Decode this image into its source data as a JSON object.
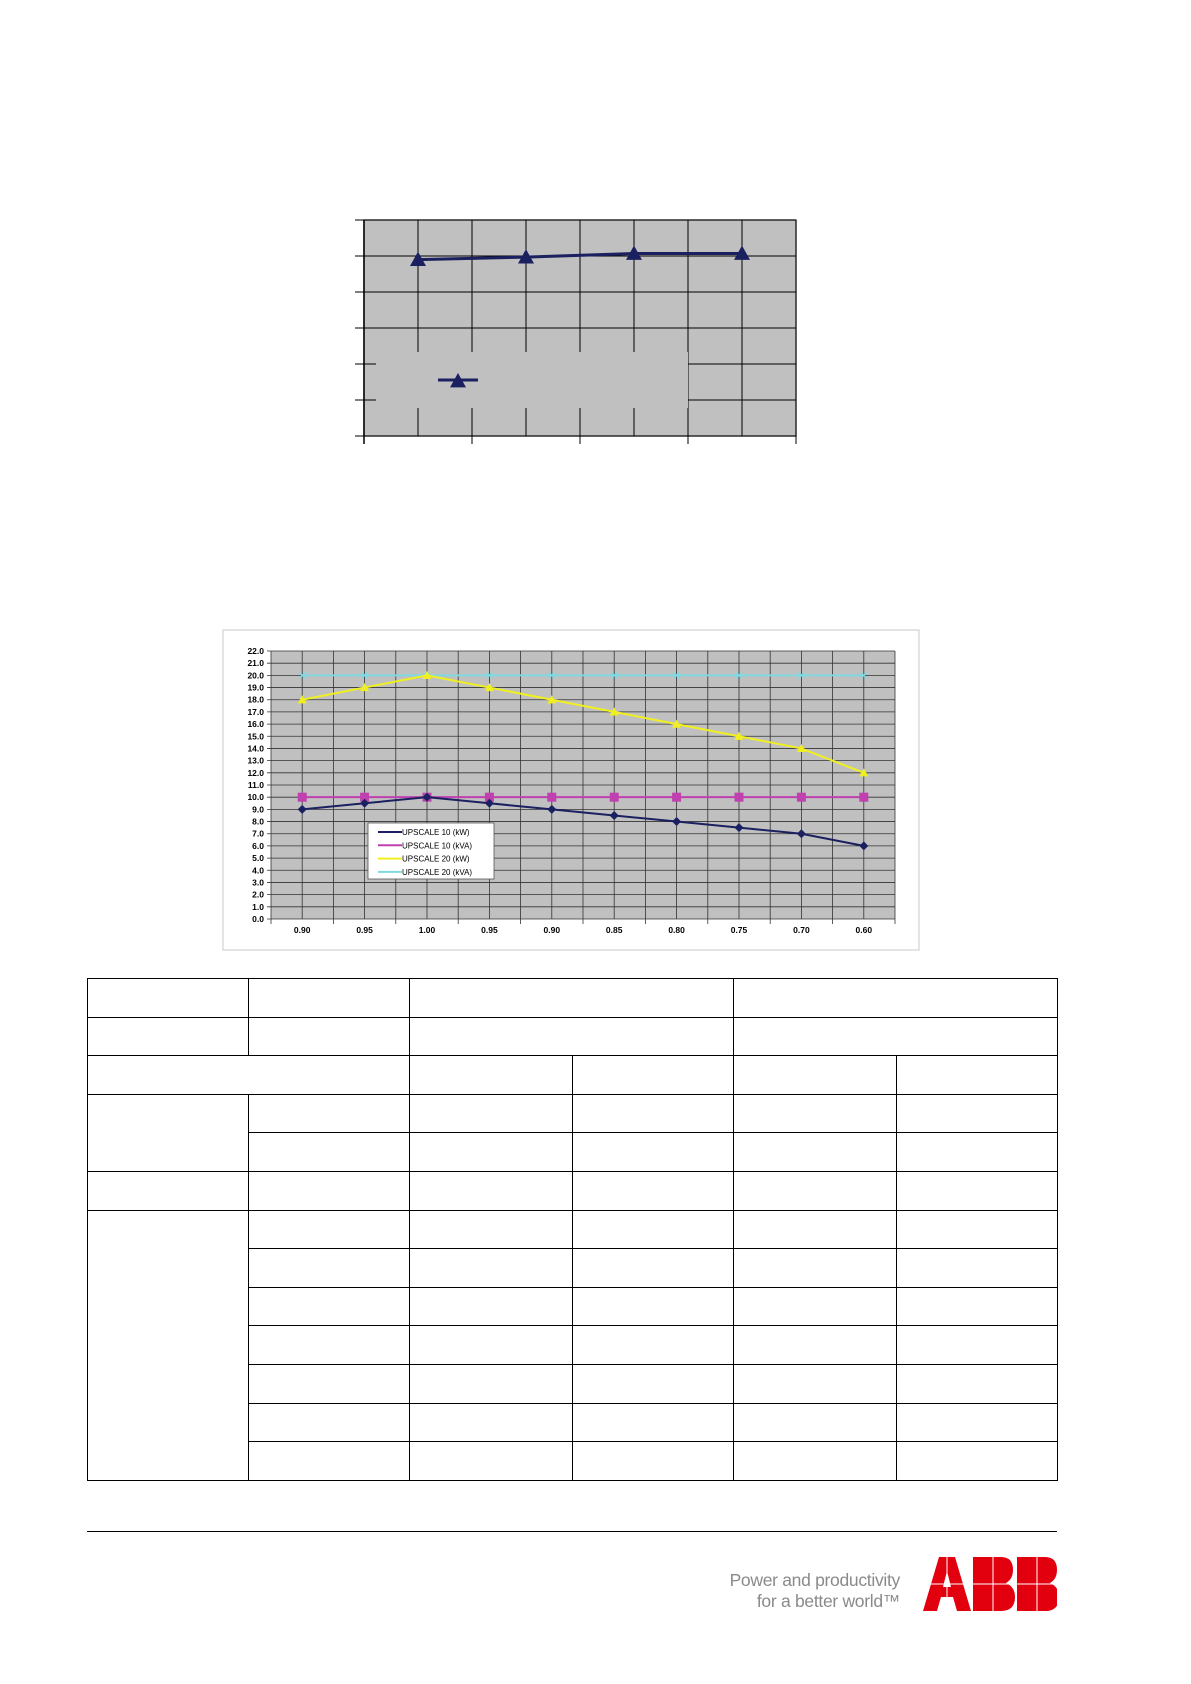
{
  "chart_data": [
    {
      "type": "line",
      "title": "",
      "xlabel": "",
      "ylabel": "",
      "categories": [
        "",
        "",
        "",
        ""
      ],
      "ylim": [
        0,
        6
      ],
      "grid": true,
      "legend": "bottom-left",
      "series": [
        {
          "values": [
            4.9,
            4.97,
            5.07,
            5.07
          ],
          "color": "#1b2060",
          "marker": "triangle"
        }
      ]
    },
    {
      "type": "line",
      "title": "",
      "xlabel": "",
      "ylabel": "",
      "categories": [
        "0.90",
        "0.95",
        "1.00",
        "0.95",
        "0.90",
        "0.85",
        "0.80",
        "0.75",
        "0.70",
        "0.60"
      ],
      "ylim": [
        0,
        22
      ],
      "yticks": [
        "0.0",
        "1.0",
        "2.0",
        "3.0",
        "4.0",
        "5.0",
        "6.0",
        "7.0",
        "8.0",
        "9.0",
        "10.0",
        "11.0",
        "12.0",
        "13.0",
        "14.0",
        "15.0",
        "16.0",
        "17.0",
        "18.0",
        "19.0",
        "20.0",
        "21.0",
        "22.0"
      ],
      "grid": true,
      "legend": "lower-left",
      "series": [
        {
          "name": "UPSCALE 10 (kW)",
          "values": [
            9,
            9.5,
            10,
            9.5,
            9,
            8.5,
            8,
            7.5,
            7,
            6
          ],
          "color": "#1b2060",
          "marker": "diamond"
        },
        {
          "name": "UPSCALE 10 (kVA)",
          "values": [
            10,
            10,
            10,
            10,
            10,
            10,
            10,
            10,
            10,
            10
          ],
          "color": "#c040b0",
          "marker": "square"
        },
        {
          "name": "UPSCALE 20 (kW)",
          "values": [
            18,
            19,
            20,
            19,
            18,
            17,
            16,
            15,
            14,
            12
          ],
          "color": "#f0f020",
          "marker": "triangle"
        },
        {
          "name": "UPSCALE 20 (kVA)",
          "values": [
            20,
            20,
            20,
            20,
            20,
            20,
            20,
            20,
            20,
            20
          ],
          "color": "#80d8e0",
          "marker": "x"
        }
      ]
    }
  ],
  "footer": {
    "tagline_line1": "Power and productivity",
    "tagline_line2": "for a better world™",
    "logo_text": "ABB",
    "logo_color": "#e2000f"
  }
}
